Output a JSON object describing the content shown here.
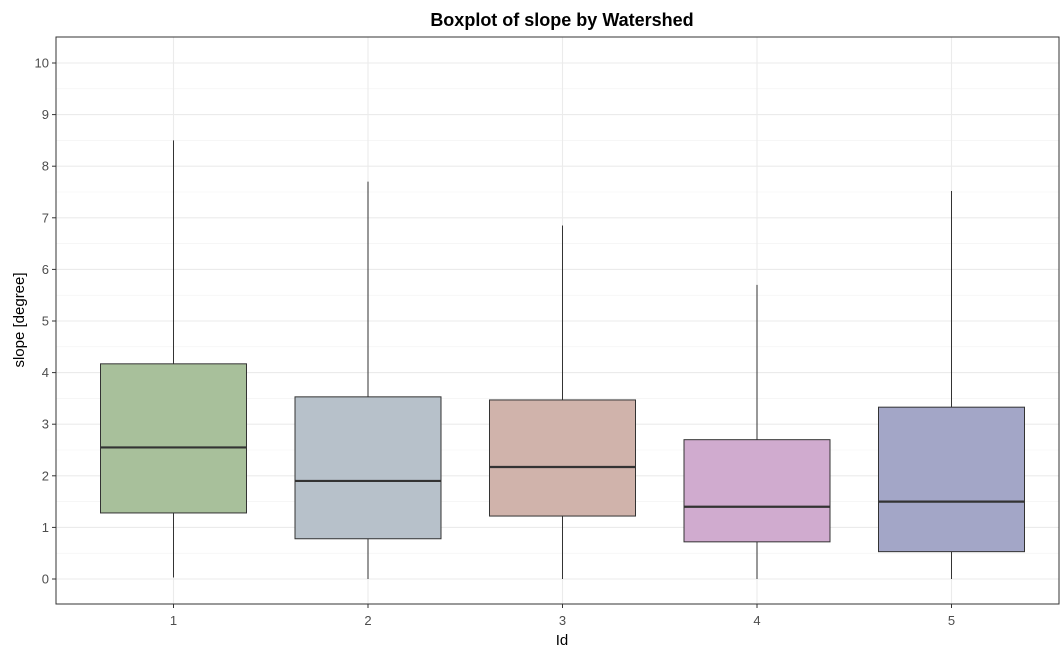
{
  "chart_data": {
    "type": "boxplot",
    "title": "Boxplot of slope by Watershed",
    "xlabel": "Id",
    "ylabel": "slope [degree]",
    "ylim": [
      -0.45,
      10.5
    ],
    "yticks": [
      "0",
      "1",
      "2",
      "3",
      "4",
      "5",
      "6",
      "7",
      "8",
      "9",
      "10"
    ],
    "grid": true,
    "legend": "none",
    "categories": [
      "1",
      "2",
      "3",
      "4",
      "5"
    ],
    "boxes": [
      {
        "category": "1",
        "min": 0.03,
        "q1": 1.28,
        "median": 2.55,
        "q3": 4.17,
        "max": 8.5,
        "color": "#a8c09b"
      },
      {
        "category": "2",
        "min": 0.0,
        "q1": 0.78,
        "median": 1.9,
        "q3": 3.53,
        "max": 7.7,
        "color": "#b7c1ca"
      },
      {
        "category": "3",
        "min": 0.0,
        "q1": 1.22,
        "median": 2.17,
        "q3": 3.47,
        "max": 6.85,
        "color": "#d0b3ab"
      },
      {
        "category": "4",
        "min": 0.0,
        "q1": 0.72,
        "median": 1.4,
        "q3": 2.7,
        "max": 5.7,
        "color": "#d0abcf"
      },
      {
        "category": "5",
        "min": 0.0,
        "q1": 0.53,
        "median": 1.5,
        "q3": 3.33,
        "max": 7.52,
        "color": "#a3a6c7"
      }
    ]
  }
}
